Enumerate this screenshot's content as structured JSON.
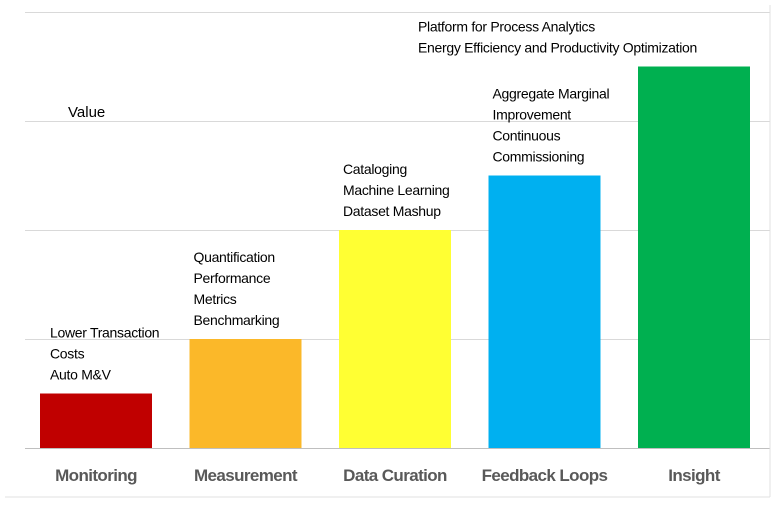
{
  "chart_data": {
    "type": "bar",
    "title": "",
    "xlabel": "",
    "ylabel": "Value",
    "ylim": [
      0,
      4
    ],
    "grid": true,
    "categories": [
      "Monitoring",
      "Measurement",
      "Data Curation",
      "Feedback Loops",
      "Insight"
    ],
    "values": [
      0.5,
      1.0,
      2.0,
      2.5,
      3.5
    ],
    "colors": [
      "#c00000",
      "#fbb829",
      "#ffff33",
      "#00b0f0",
      "#00b050"
    ],
    "annotations": [
      [
        "Lower Transaction",
        "Costs",
        "Auto M&V"
      ],
      [
        "Quantification",
        "Performance",
        "Metrics",
        "Benchmarking"
      ],
      [
        "Cataloging",
        "Machine Learning",
        "Dataset Mashup"
      ],
      [
        "Aggregate Marginal",
        "Improvement",
        "Continuous",
        "Commissioning"
      ],
      [
        "Platform for Process Analytics",
        "Energy Efficiency  and  Productivity Optimization"
      ]
    ]
  }
}
